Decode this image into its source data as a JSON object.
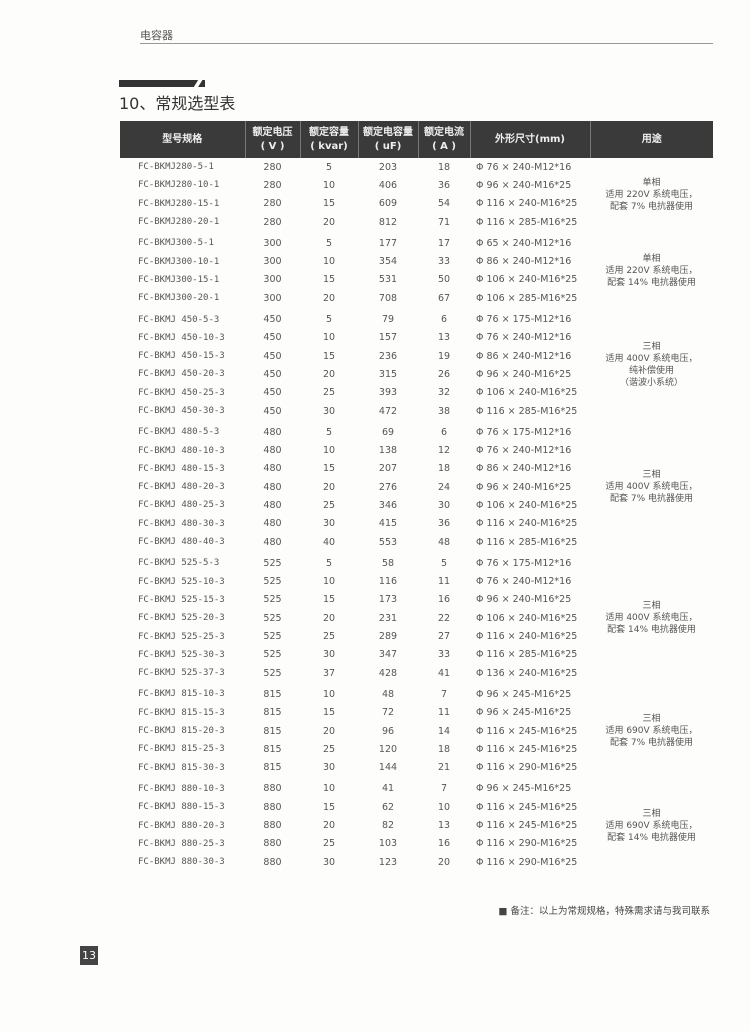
{
  "header": {
    "category": "电容器"
  },
  "section": {
    "title": "10、常规选型表"
  },
  "table": {
    "columns": [
      "型号规格",
      "额定电压\n( V )",
      "额定容量\n( kvar)",
      "额定电容量\n( uF)",
      "额定电流\n( A )",
      "外形尺寸(mm)",
      "用途"
    ],
    "groups": [
      {
        "usage": "单相\n适用 220V 系统电压，\n配套 7% 电抗器使用",
        "rows": [
          [
            "FC-BKMJ280-5-1",
            "280",
            "5",
            "203",
            "18",
            "Φ 76 × 240-M12*16"
          ],
          [
            "FC-BKMJ280-10-1",
            "280",
            "10",
            "406",
            "36",
            "Φ 96 × 240-M16*25"
          ],
          [
            "FC-BKMJ280-15-1",
            "280",
            "15",
            "609",
            "54",
            "Φ 116 × 240-M16*25"
          ],
          [
            "FC-BKMJ280-20-1",
            "280",
            "20",
            "812",
            "71",
            "Φ 116 × 285-M16*25"
          ]
        ]
      },
      {
        "usage": "单相\n适用 220V 系统电压，\n配套 14% 电抗器使用",
        "rows": [
          [
            "FC-BKMJ300-5-1",
            "300",
            "5",
            "177",
            "17",
            "Φ 65 × 240-M12*16"
          ],
          [
            "FC-BKMJ300-10-1",
            "300",
            "10",
            "354",
            "33",
            "Φ 86 × 240-M12*16"
          ],
          [
            "FC-BKMJ300-15-1",
            "300",
            "15",
            "531",
            "50",
            "Φ 106 × 240-M16*25"
          ],
          [
            "FC-BKMJ300-20-1",
            "300",
            "20",
            "708",
            "67",
            "Φ 106 × 285-M16*25"
          ]
        ]
      },
      {
        "usage": "三相\n适用 400V 系统电压，\n纯补偿使用\n（谐波小系统）",
        "rows": [
          [
            "FC-BKMJ 450-5-3",
            "450",
            "5",
            "79",
            "6",
            "Φ 76 × 175-M12*16"
          ],
          [
            "FC-BKMJ 450-10-3",
            "450",
            "10",
            "157",
            "13",
            "Φ 76 × 240-M12*16"
          ],
          [
            "FC-BKMJ 450-15-3",
            "450",
            "15",
            "236",
            "19",
            "Φ 86 × 240-M12*16"
          ],
          [
            "FC-BKMJ 450-20-3",
            "450",
            "20",
            "315",
            "26",
            "Φ 96 × 240-M16*25"
          ],
          [
            "FC-BKMJ 450-25-3",
            "450",
            "25",
            "393",
            "32",
            "Φ 106 × 240-M16*25"
          ],
          [
            "FC-BKMJ 450-30-3",
            "450",
            "30",
            "472",
            "38",
            "Φ 116 × 285-M16*25"
          ]
        ]
      },
      {
        "usage": "三相\n适用 400V 系统电压，\n配套 7% 电抗器使用",
        "rows": [
          [
            "FC-BKMJ 480-5-3",
            "480",
            "5",
            "69",
            "6",
            "Φ 76 × 175-M12*16"
          ],
          [
            "FC-BKMJ 480-10-3",
            "480",
            "10",
            "138",
            "12",
            "Φ 76 × 240-M12*16"
          ],
          [
            "FC-BKMJ 480-15-3",
            "480",
            "15",
            "207",
            "18",
            "Φ 86 × 240-M12*16"
          ],
          [
            "FC-BKMJ 480-20-3",
            "480",
            "20",
            "276",
            "24",
            "Φ 96 × 240-M16*25"
          ],
          [
            "FC-BKMJ 480-25-3",
            "480",
            "25",
            "346",
            "30",
            "Φ 106 × 240-M16*25"
          ],
          [
            "FC-BKMJ 480-30-3",
            "480",
            "30",
            "415",
            "36",
            "Φ 116 × 240-M16*25"
          ],
          [
            "FC-BKMJ 480-40-3",
            "480",
            "40",
            "553",
            "48",
            "Φ 116 × 285-M16*25"
          ]
        ]
      },
      {
        "usage": "三相\n适用 400V 系统电压，\n配套 14% 电抗器使用",
        "rows": [
          [
            "FC-BKMJ 525-5-3",
            "525",
            "5",
            "58",
            "5",
            "Φ 76 × 175-M12*16"
          ],
          [
            "FC-BKMJ 525-10-3",
            "525",
            "10",
            "116",
            "11",
            "Φ 76 × 240-M12*16"
          ],
          [
            "FC-BKMJ 525-15-3",
            "525",
            "15",
            "173",
            "16",
            "Φ 96 × 240-M16*25"
          ],
          [
            "FC-BKMJ 525-20-3",
            "525",
            "20",
            "231",
            "22",
            "Φ 106 × 240-M16*25"
          ],
          [
            "FC-BKMJ 525-25-3",
            "525",
            "25",
            "289",
            "27",
            "Φ 116 × 240-M16*25"
          ],
          [
            "FC-BKMJ 525-30-3",
            "525",
            "30",
            "347",
            "33",
            "Φ 116 × 285-M16*25"
          ],
          [
            "FC-BKMJ 525-37-3",
            "525",
            "37",
            "428",
            "41",
            "Φ 136 × 240-M16*25"
          ]
        ]
      },
      {
        "usage": "三相\n适用 690V 系统电压，\n配套 7% 电抗器使用",
        "rows": [
          [
            "FC-BKMJ 815-10-3",
            "815",
            "10",
            "48",
            "7",
            "Φ 96 × 245-M16*25"
          ],
          [
            "FC-BKMJ 815-15-3",
            "815",
            "15",
            "72",
            "11",
            "Φ 96 × 245-M16*25"
          ],
          [
            "FC-BKMJ 815-20-3",
            "815",
            "20",
            "96",
            "14",
            "Φ 116 × 245-M16*25"
          ],
          [
            "FC-BKMJ 815-25-3",
            "815",
            "25",
            "120",
            "18",
            "Φ 116 × 245-M16*25"
          ],
          [
            "FC-BKMJ 815-30-3",
            "815",
            "30",
            "144",
            "21",
            "Φ 116 × 290-M16*25"
          ]
        ]
      },
      {
        "usage": "三相\n适用 690V 系统电压，\n配套 14% 电抗器使用",
        "rows": [
          [
            "FC-BKMJ 880-10-3",
            "880",
            "10",
            "41",
            "7",
            "Φ 96 × 245-M16*25"
          ],
          [
            "FC-BKMJ 880-15-3",
            "880",
            "15",
            "62",
            "10",
            "Φ 116 × 245-M16*25"
          ],
          [
            "FC-BKMJ 880-20-3",
            "880",
            "20",
            "82",
            "13",
            "Φ 116 × 245-M16*25"
          ],
          [
            "FC-BKMJ 880-25-3",
            "880",
            "25",
            "103",
            "16",
            "Φ 116 × 290-M16*25"
          ],
          [
            "FC-BKMJ 880-30-3",
            "880",
            "30",
            "123",
            "20",
            "Φ 116 × 290-M16*25"
          ]
        ]
      }
    ]
  },
  "note": "■ 备注：以上为常规规格，特殊需求请与我司联系",
  "page_number": "13"
}
